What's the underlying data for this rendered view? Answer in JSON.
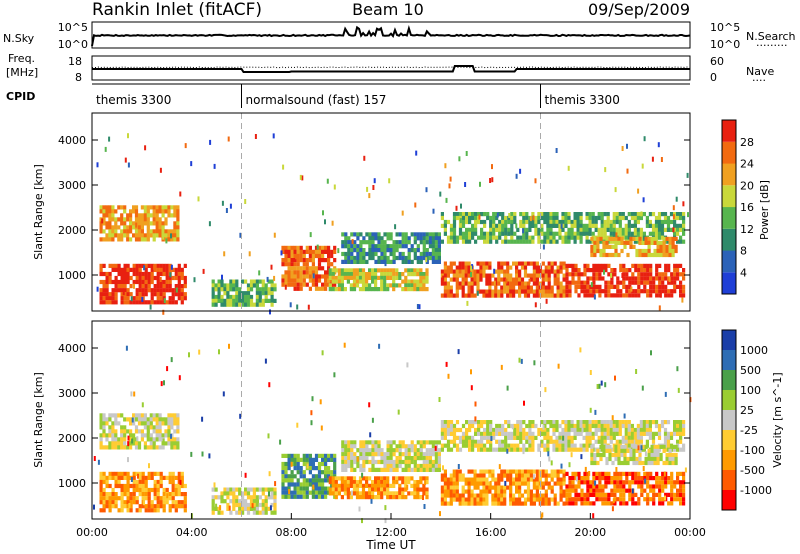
{
  "header": {
    "station": "Rankin Inlet (fitACF)",
    "beam": "Beam 10",
    "date": "09/Sep/2009"
  },
  "top_panels": {
    "nsky_label": "N.Sky",
    "nsearch_label": "N.Search",
    "nsearch_line": "·········",
    "log_hi": "10^5",
    "log_lo": "10^0",
    "freq_label_1": "Freq.",
    "freq_label_2": "[MHz]",
    "freq_hi": "18",
    "freq_lo": "8",
    "nave_hi": "60",
    "nave_lo": "0",
    "nave_label": "Nave",
    "nave_line": "····",
    "cpid_label": "CPID",
    "cpid_segments": [
      {
        "name": "themis 3300",
        "start_h": 0
      },
      {
        "name": "normalsound (fast) 157",
        "start_h": 6
      },
      {
        "name": "themis 3300",
        "start_h": 18
      }
    ]
  },
  "colors": {
    "power_scale": [
      "#1f3fd6",
      "#2b62b8",
      "#2f8a6a",
      "#57b54e",
      "#c9d83a",
      "#f0a020",
      "#f26a10",
      "#e82010"
    ],
    "velocity_scale": [
      "#ff0000",
      "#ff5a00",
      "#ff9a00",
      "#ffcc33",
      "#c8c8c8",
      "#9acd32",
      "#4aa04a",
      "#2e6db4",
      "#1a3ea8"
    ]
  },
  "chart_data": [
    {
      "type": "heatmap",
      "name": "power",
      "xlabel": "",
      "ylabel": "Slant Range [km]",
      "xlim_hours": [
        0,
        24
      ],
      "ylim_km": [
        200,
        4600
      ],
      "y_ticks": [
        "1000",
        "2000",
        "3000",
        "4000"
      ],
      "colorbar": {
        "label": "Power [dB]",
        "ticks": [
          "4",
          "8",
          "12",
          "16",
          "20",
          "24",
          "28"
        ],
        "range": [
          0,
          32
        ]
      },
      "bands": [
        {
          "t0": 0.3,
          "t1": 3.8,
          "r0": 350,
          "r1": 1250,
          "level": 7
        },
        {
          "t0": 0.3,
          "t1": 3.5,
          "r0": 1750,
          "r1": 2550,
          "level": 5
        },
        {
          "t0": 4.8,
          "t1": 7.4,
          "r0": 300,
          "r1": 900,
          "level": 3
        },
        {
          "t0": 7.6,
          "t1": 9.8,
          "r0": 650,
          "r1": 1650,
          "level": 6
        },
        {
          "t0": 9.5,
          "t1": 13.5,
          "r0": 650,
          "r1": 1150,
          "level": 4
        },
        {
          "t0": 10.0,
          "t1": 14.0,
          "r0": 1250,
          "r1": 1950,
          "level": 2
        },
        {
          "t0": 14.0,
          "t1": 19.0,
          "r0": 500,
          "r1": 1300,
          "level": 6
        },
        {
          "t0": 14.0,
          "t1": 23.8,
          "r0": 1700,
          "r1": 2400,
          "level": 3
        },
        {
          "t0": 19.0,
          "t1": 23.8,
          "r0": 500,
          "r1": 1250,
          "level": 7
        },
        {
          "t0": 20.0,
          "t1": 23.5,
          "r0": 1400,
          "r1": 1850,
          "level": 5
        }
      ]
    },
    {
      "type": "heatmap",
      "name": "velocity",
      "xlabel": "Time UT",
      "ylabel": "Slant Range [km]",
      "xlim_hours": [
        0,
        24
      ],
      "ylim_km": [
        200,
        4600
      ],
      "x_ticks": [
        "00:00",
        "04:00",
        "08:00",
        "12:00",
        "16:00",
        "20:00",
        "00:00"
      ],
      "y_ticks": [
        "1000",
        "2000",
        "3000",
        "4000"
      ],
      "colorbar": {
        "label": "Velocity [m s^-1]",
        "ticks": [
          "1000",
          "500",
          "100",
          "25",
          "-25",
          "-100",
          "-500",
          "-1000"
        ]
      },
      "bands": [
        {
          "t0": 0.3,
          "t1": 3.8,
          "r0": 350,
          "r1": 1250,
          "level": 2
        },
        {
          "t0": 0.3,
          "t1": 3.5,
          "r0": 1750,
          "r1": 2550,
          "level": 4
        },
        {
          "t0": 4.8,
          "t1": 7.4,
          "r0": 300,
          "r1": 900,
          "level": 4
        },
        {
          "t0": 7.6,
          "t1": 9.8,
          "r0": 650,
          "r1": 1650,
          "level": 6
        },
        {
          "t0": 9.5,
          "t1": 13.5,
          "r0": 650,
          "r1": 1150,
          "level": 2
        },
        {
          "t0": 10.0,
          "t1": 14.0,
          "r0": 1250,
          "r1": 1950,
          "level": 4
        },
        {
          "t0": 14.0,
          "t1": 19.0,
          "r0": 500,
          "r1": 1300,
          "level": 2
        },
        {
          "t0": 14.0,
          "t1": 23.8,
          "r0": 1700,
          "r1": 2400,
          "level": 4
        },
        {
          "t0": 19.0,
          "t1": 23.8,
          "r0": 500,
          "r1": 1250,
          "level": 1
        },
        {
          "t0": 20.0,
          "t1": 23.5,
          "r0": 1400,
          "r1": 1850,
          "level": 4
        }
      ]
    }
  ]
}
